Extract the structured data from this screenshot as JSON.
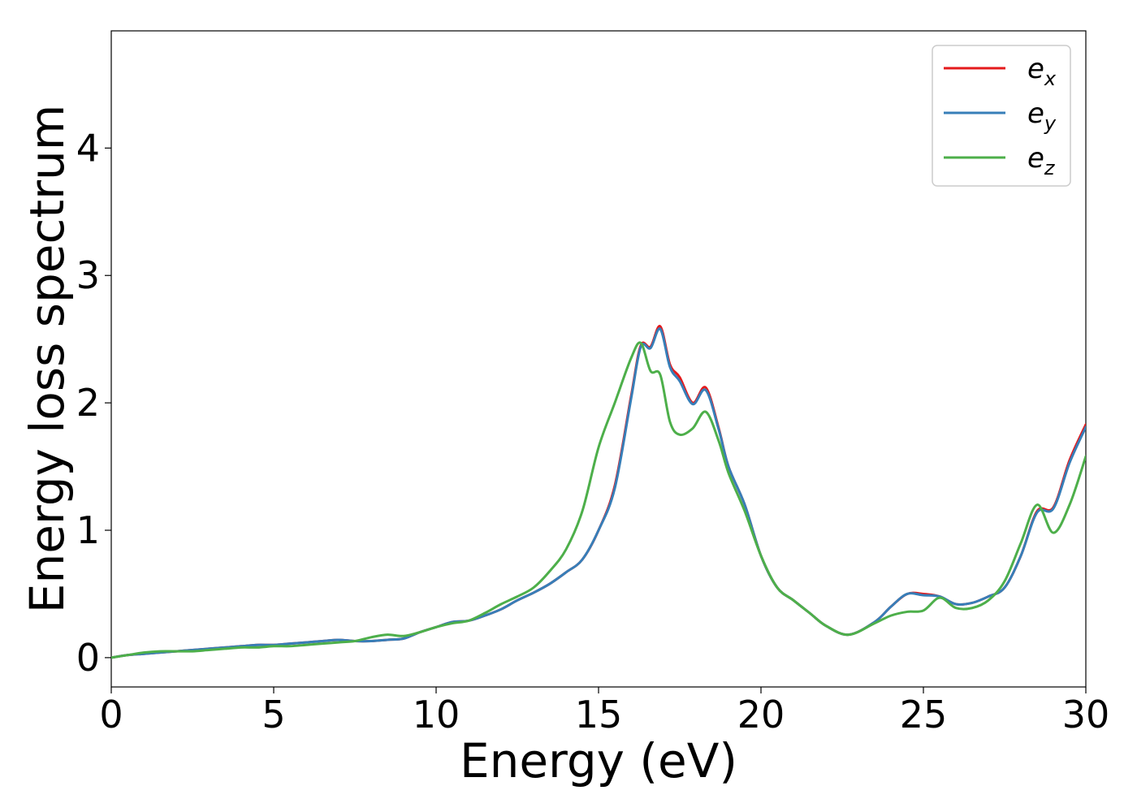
{
  "chart_data": {
    "type": "line",
    "title": "",
    "xlabel": "Energy (eV)",
    "ylabel": "Energy loss spectrum",
    "xlim": [
      0,
      30
    ],
    "ylim": [
      -0.23,
      4.92
    ],
    "xticks": [
      0,
      5,
      10,
      15,
      20,
      25,
      30
    ],
    "yticks": [
      0,
      1,
      2,
      3,
      4
    ],
    "grid": false,
    "legend_position": "top-right",
    "series": [
      {
        "name_base": "e",
        "name_sub": "x",
        "color": "#e41a1c",
        "x": [
          0,
          0.5,
          1,
          1.5,
          2,
          2.5,
          3,
          3.5,
          4,
          4.5,
          5,
          5.5,
          6,
          6.5,
          7,
          7.5,
          8,
          8.5,
          9,
          9.5,
          10,
          10.5,
          11,
          11.5,
          12,
          12.5,
          13,
          13.5,
          14,
          14.5,
          15,
          15.5,
          16,
          16.3,
          16.6,
          16.9,
          17.2,
          17.5,
          17.9,
          18.3,
          18.7,
          19,
          19.5,
          20,
          20.5,
          21,
          21.5,
          22,
          22.7,
          23.5,
          24,
          24.5,
          25,
          25.5,
          26,
          26.5,
          27,
          27.5,
          28,
          28.5,
          29,
          29.5,
          30
        ],
        "y": [
          0.0,
          0.02,
          0.03,
          0.04,
          0.05,
          0.06,
          0.07,
          0.08,
          0.09,
          0.1,
          0.1,
          0.11,
          0.12,
          0.13,
          0.14,
          0.13,
          0.13,
          0.14,
          0.15,
          0.2,
          0.24,
          0.28,
          0.29,
          0.33,
          0.38,
          0.45,
          0.51,
          0.58,
          0.67,
          0.77,
          1.0,
          1.35,
          2.05,
          2.45,
          2.44,
          2.6,
          2.3,
          2.2,
          2.0,
          2.12,
          1.8,
          1.5,
          1.2,
          0.8,
          0.55,
          0.45,
          0.35,
          0.25,
          0.18,
          0.28,
          0.4,
          0.5,
          0.5,
          0.48,
          0.42,
          0.43,
          0.48,
          0.55,
          0.8,
          1.15,
          1.18,
          1.55,
          1.83
        ]
      },
      {
        "name_base": "e",
        "name_sub": "y",
        "color": "#377eb8",
        "x": [
          0,
          0.5,
          1,
          1.5,
          2,
          2.5,
          3,
          3.5,
          4,
          4.5,
          5,
          5.5,
          6,
          6.5,
          7,
          7.5,
          8,
          8.5,
          9,
          9.5,
          10,
          10.5,
          11,
          11.5,
          12,
          12.5,
          13,
          13.5,
          14,
          14.5,
          15,
          15.5,
          16,
          16.3,
          16.6,
          16.9,
          17.2,
          17.5,
          17.9,
          18.3,
          18.7,
          19,
          19.5,
          20,
          20.5,
          21,
          21.5,
          22,
          22.7,
          23.5,
          24,
          24.5,
          25,
          25.5,
          26,
          26.5,
          27,
          27.5,
          28,
          28.5,
          29,
          29.5,
          30
        ],
        "y": [
          0.0,
          0.02,
          0.03,
          0.04,
          0.05,
          0.06,
          0.07,
          0.08,
          0.09,
          0.1,
          0.1,
          0.11,
          0.12,
          0.13,
          0.14,
          0.13,
          0.13,
          0.14,
          0.15,
          0.2,
          0.24,
          0.28,
          0.29,
          0.33,
          0.38,
          0.45,
          0.51,
          0.58,
          0.67,
          0.77,
          1.0,
          1.33,
          2.03,
          2.44,
          2.43,
          2.58,
          2.28,
          2.17,
          1.99,
          2.1,
          1.79,
          1.5,
          1.2,
          0.8,
          0.55,
          0.45,
          0.35,
          0.25,
          0.18,
          0.28,
          0.4,
          0.5,
          0.49,
          0.48,
          0.42,
          0.43,
          0.48,
          0.55,
          0.8,
          1.14,
          1.17,
          1.53,
          1.81
        ]
      },
      {
        "name_base": "e",
        "name_sub": "z",
        "color": "#4daf4a",
        "x": [
          0,
          0.5,
          1,
          1.5,
          2,
          2.5,
          3,
          3.5,
          4,
          4.5,
          5,
          5.5,
          6,
          6.5,
          7,
          7.5,
          8,
          8.5,
          9,
          9.5,
          10,
          10.5,
          11,
          11.5,
          12,
          12.5,
          13,
          13.5,
          14,
          14.5,
          15,
          15.5,
          16,
          16.3,
          16.6,
          16.9,
          17.2,
          17.5,
          17.9,
          18.3,
          18.7,
          19,
          19.5,
          20,
          20.5,
          21,
          21.5,
          22,
          22.7,
          23.5,
          24,
          24.5,
          25,
          25.5,
          26,
          26.5,
          27,
          27.5,
          28,
          28.5,
          29,
          29.5,
          30
        ],
        "y": [
          0.0,
          0.02,
          0.04,
          0.05,
          0.05,
          0.05,
          0.06,
          0.07,
          0.08,
          0.08,
          0.09,
          0.09,
          0.1,
          0.11,
          0.12,
          0.13,
          0.16,
          0.18,
          0.17,
          0.2,
          0.24,
          0.27,
          0.29,
          0.35,
          0.42,
          0.48,
          0.55,
          0.68,
          0.85,
          1.15,
          1.65,
          2.0,
          2.35,
          2.47,
          2.25,
          2.22,
          1.85,
          1.75,
          1.8,
          1.93,
          1.7,
          1.45,
          1.15,
          0.8,
          0.55,
          0.45,
          0.35,
          0.25,
          0.18,
          0.27,
          0.33,
          0.36,
          0.37,
          0.47,
          0.39,
          0.39,
          0.45,
          0.6,
          0.9,
          1.2,
          0.98,
          1.2,
          1.58
        ]
      }
    ]
  }
}
